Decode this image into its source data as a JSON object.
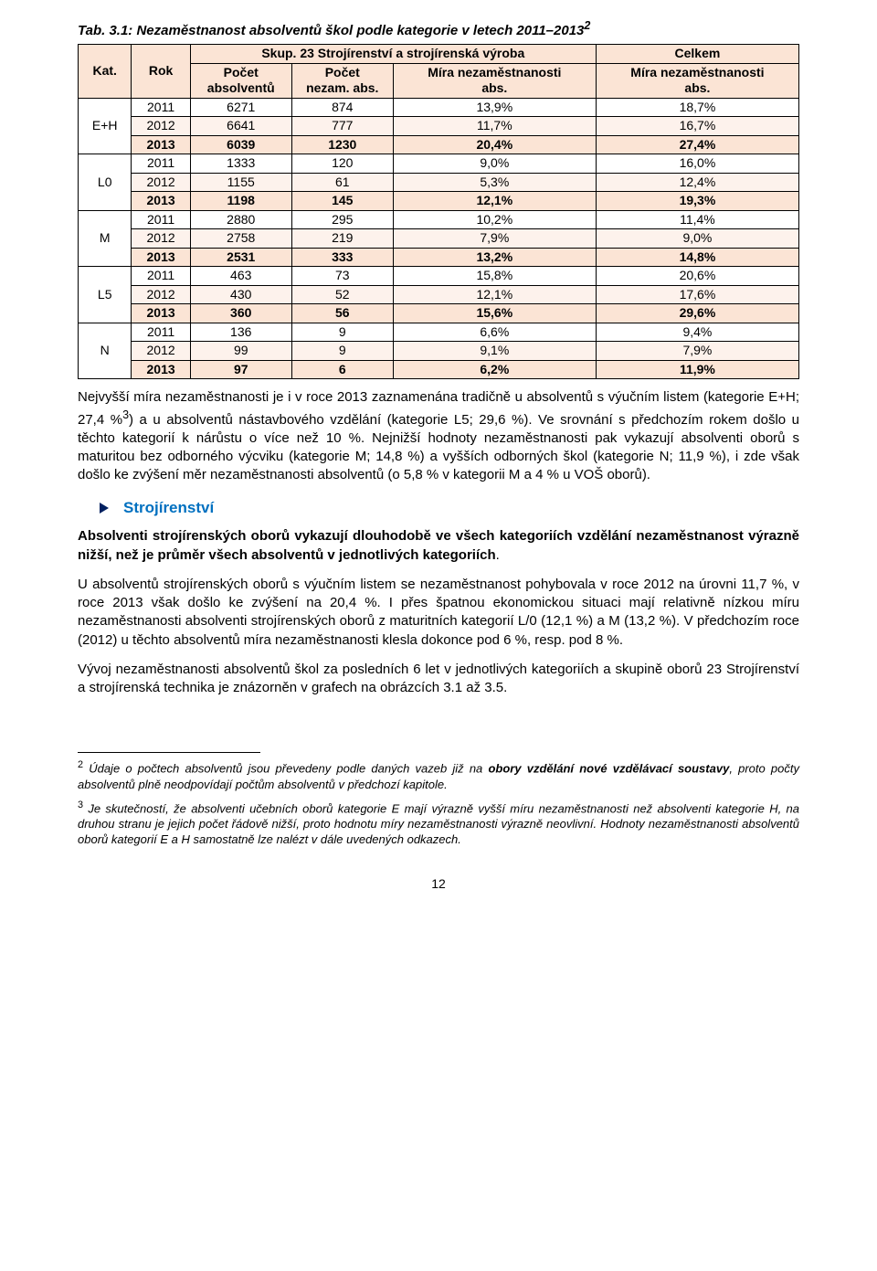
{
  "table": {
    "title": "Tab. 3.1: Nezaměstnanost absolventů škol podle kategorie v letech 2011–2013",
    "title_sup": "2",
    "header": {
      "group_label": "Skup. 23 Strojírenství a strojírenská výroba",
      "total_label": "Celkem",
      "kat": "Kat.",
      "rok": "Rok",
      "c1a": "Počet",
      "c1b": "absolventů",
      "c2a": "Počet",
      "c2b": "nezam. abs.",
      "c3a": "Míra nezaměstnanosti",
      "c3b": "abs.",
      "c4a": "Míra nezaměstnanosti",
      "c4b": "abs."
    },
    "colors": {
      "header_bg": "#fbe4d5",
      "row_even": "#fdf2ec",
      "row_odd": "#ffffff",
      "row_bold": "#fbe4d5"
    },
    "groups": [
      {
        "kat": "E+H",
        "rows": [
          {
            "rok": "2011",
            "c1": "6271",
            "c2": "874",
            "c3": "13,9%",
            "c4": "18,7%",
            "bold": false
          },
          {
            "rok": "2012",
            "c1": "6641",
            "c2": "777",
            "c3": "11,7%",
            "c4": "16,7%",
            "bold": false
          },
          {
            "rok": "2013",
            "c1": "6039",
            "c2": "1230",
            "c3": "20,4%",
            "c4": "27,4%",
            "bold": true
          }
        ]
      },
      {
        "kat": "L0",
        "rows": [
          {
            "rok": "2011",
            "c1": "1333",
            "c2": "120",
            "c3": "9,0%",
            "c4": "16,0%",
            "bold": false
          },
          {
            "rok": "2012",
            "c1": "1155",
            "c2": "61",
            "c3": "5,3%",
            "c4": "12,4%",
            "bold": false
          },
          {
            "rok": "2013",
            "c1": "1198",
            "c2": "145",
            "c3": "12,1%",
            "c4": "19,3%",
            "bold": true
          }
        ]
      },
      {
        "kat": "M",
        "rows": [
          {
            "rok": "2011",
            "c1": "2880",
            "c2": "295",
            "c3": "10,2%",
            "c4": "11,4%",
            "bold": false
          },
          {
            "rok": "2012",
            "c1": "2758",
            "c2": "219",
            "c3": "7,9%",
            "c4": "9,0%",
            "bold": false
          },
          {
            "rok": "2013",
            "c1": "2531",
            "c2": "333",
            "c3": "13,2%",
            "c4": "14,8%",
            "bold": true
          }
        ]
      },
      {
        "kat": "L5",
        "rows": [
          {
            "rok": "2011",
            "c1": "463",
            "c2": "73",
            "c3": "15,8%",
            "c4": "20,6%",
            "bold": false
          },
          {
            "rok": "2012",
            "c1": "430",
            "c2": "52",
            "c3": "12,1%",
            "c4": "17,6%",
            "bold": false
          },
          {
            "rok": "2013",
            "c1": "360",
            "c2": "56",
            "c3": "15,6%",
            "c4": "29,6%",
            "bold": true
          }
        ]
      },
      {
        "kat": "N",
        "rows": [
          {
            "rok": "2011",
            "c1": "136",
            "c2": "9",
            "c3": "6,6%",
            "c4": "9,4%",
            "bold": false
          },
          {
            "rok": "2012",
            "c1": "99",
            "c2": "9",
            "c3": "9,1%",
            "c4": "7,9%",
            "bold": false
          },
          {
            "rok": "2013",
            "c1": "97",
            "c2": "6",
            "c3": "6,2%",
            "c4": "11,9%",
            "bold": true
          }
        ]
      }
    ]
  },
  "paras": {
    "p1a": "Nejvyšší míra nezaměstnanosti je i v roce 2013 zaznamenána tradičně u absolventů s výučním listem (kategorie E+H; 27,4 %",
    "p1sup": "3",
    "p1b": ") a u absolventů nástavbového vzdělání (kategorie L5; 29,6 %). Ve srovnání s předchozím rokem došlo u těchto kategorií k nárůstu o více než 10 %. Nejnižší hodnoty nezaměstnanosti pak vykazují absolventi oborů s maturitou bez odborného výcviku (kategorie M; 14,8 %) a vyšších odborných škol (kategorie N; 11,9 %), i zde však došlo ke zvýšení měr nezaměstnanosti absolventů (o 5,8 % v kategorii M a 4 % u VOŠ oborů).",
    "section": "Strojírenství",
    "p2a": "Absolventi strojírenských oborů vykazují dlouhodobě ve všech kategoriích vzdělání nezaměstnanost výrazně nižší, než je průměr všech absolventů v jednotlivých kategoriích",
    "p2b": ".",
    "p3": "U absolventů strojírenských oborů s výučním listem se nezaměstnanost pohybovala v roce 2012 na úrovni 11,7 %, v roce 2013 však došlo ke zvýšení na 20,4 %. I přes špatnou ekonomickou situaci mají relativně nízkou míru nezaměstnanosti absolventi strojírenských oborů z maturitních kategorií L/0 (12,1 %) a M (13,2 %). V předchozím roce (2012) u těchto absolventů míra nezaměstnanosti klesla dokonce pod 6 %, resp. pod 8 %.",
    "p4": "Vývoj nezaměstnanosti absolventů škol za posledních 6 let v jednotlivých kategoriích a skupině oborů 23 Strojírenství a strojírenská technika je znázorněn v grafech na obrázcích 3.1 až 3.5."
  },
  "footnotes": {
    "f2_sup": "2",
    "f2a": " Údaje o počtech absolventů jsou převedeny podle daných vazeb již na ",
    "f2b": "obory vzdělání nové vzdělávací soustavy",
    "f2c": ", proto počty absolventů plně neodpovídají počtům absolventů v předchozí kapitole.",
    "f3_sup": "3",
    "f3": " Je skutečností, že absolventi učebních oborů kategorie E mají výrazně vyšší míru nezaměstnanosti než absolventi kategorie H, na druhou stranu je jejich počet řádově nižší, proto hodnotu míry nezaměstnanosti výrazně neovlivní. Hodnoty nezaměstnanosti absolventů oborů kategorií E a H samostatně lze nalézt v dále uvedených odkazech."
  },
  "pagenum": "12"
}
